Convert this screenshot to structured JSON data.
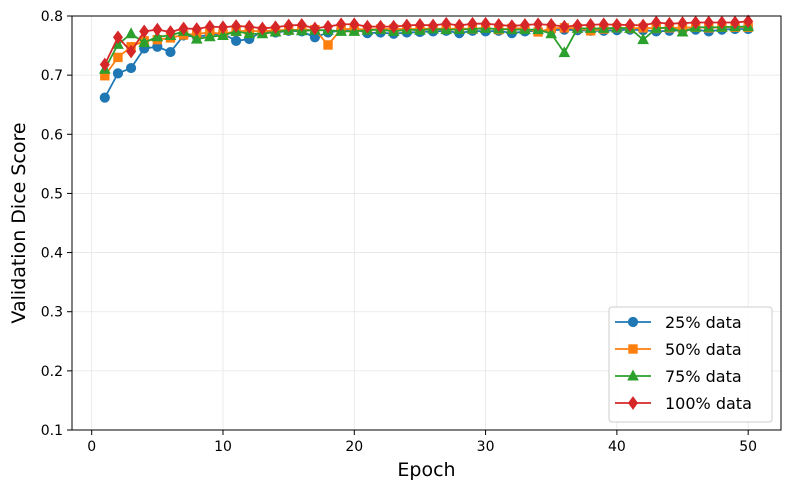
{
  "chart_data": {
    "type": "line",
    "title": "",
    "xlabel": "Epoch",
    "ylabel": "Validation Dice Score",
    "xlim": [
      -1.5,
      52.5
    ],
    "ylim": [
      0.1,
      0.8
    ],
    "xticks": [
      0,
      10,
      20,
      30,
      40,
      50
    ],
    "yticks": [
      0.1,
      0.2,
      0.3,
      0.4,
      0.5,
      0.6,
      0.7,
      0.8
    ],
    "grid": true,
    "legend_position": "lower-right",
    "x": [
      1,
      2,
      3,
      4,
      5,
      6,
      7,
      8,
      9,
      10,
      11,
      12,
      13,
      14,
      15,
      16,
      17,
      18,
      19,
      20,
      21,
      22,
      23,
      24,
      25,
      26,
      27,
      28,
      29,
      30,
      31,
      32,
      33,
      34,
      35,
      36,
      37,
      38,
      39,
      40,
      41,
      42,
      43,
      44,
      45,
      46,
      47,
      48,
      49,
      50
    ],
    "series": [
      {
        "name": "25% data",
        "color": "#1f77b4",
        "marker": "circle",
        "values": [
          0.662,
          0.703,
          0.712,
          0.745,
          0.748,
          0.739,
          0.767,
          0.765,
          0.768,
          0.77,
          0.758,
          0.761,
          0.774,
          0.772,
          0.775,
          0.774,
          0.764,
          0.772,
          0.776,
          0.778,
          0.771,
          0.772,
          0.77,
          0.772,
          0.773,
          0.774,
          0.775,
          0.771,
          0.775,
          0.774,
          0.775,
          0.771,
          0.774,
          0.775,
          0.776,
          0.777,
          0.776,
          0.775,
          0.775,
          0.776,
          0.777,
          0.776,
          0.774,
          0.775,
          0.776,
          0.777,
          0.774,
          0.777,
          0.778,
          0.778
        ]
      },
      {
        "name": "50% data",
        "color": "#ff7f0e",
        "marker": "square",
        "values": [
          0.699,
          0.73,
          0.748,
          0.758,
          0.76,
          0.763,
          0.768,
          0.77,
          0.772,
          0.77,
          0.774,
          0.775,
          0.774,
          0.776,
          0.776,
          0.777,
          0.777,
          0.751,
          0.778,
          0.778,
          0.777,
          0.778,
          0.778,
          0.778,
          0.778,
          0.779,
          0.778,
          0.779,
          0.778,
          0.78,
          0.777,
          0.779,
          0.779,
          0.773,
          0.779,
          0.78,
          0.779,
          0.775,
          0.778,
          0.78,
          0.779,
          0.78,
          0.779,
          0.78,
          0.78,
          0.781,
          0.78,
          0.781,
          0.781,
          0.781
        ]
      },
      {
        "name": "75% data",
        "color": "#2ca02c",
        "marker": "triangle",
        "values": [
          0.71,
          0.752,
          0.77,
          0.755,
          0.765,
          0.767,
          0.774,
          0.761,
          0.765,
          0.767,
          0.774,
          0.77,
          0.77,
          0.773,
          0.776,
          0.775,
          0.776,
          0.776,
          0.774,
          0.774,
          0.776,
          0.777,
          0.774,
          0.777,
          0.776,
          0.778,
          0.777,
          0.777,
          0.778,
          0.779,
          0.778,
          0.777,
          0.777,
          0.777,
          0.77,
          0.738,
          0.779,
          0.779,
          0.779,
          0.78,
          0.779,
          0.76,
          0.779,
          0.781,
          0.773,
          0.781,
          0.781,
          0.781,
          0.782,
          0.782
        ]
      },
      {
        "name": "100% data",
        "color": "#d62728",
        "marker": "diamond",
        "values": [
          0.718,
          0.764,
          0.74,
          0.774,
          0.777,
          0.773,
          0.779,
          0.778,
          0.782,
          0.781,
          0.783,
          0.782,
          0.779,
          0.781,
          0.784,
          0.785,
          0.779,
          0.782,
          0.786,
          0.786,
          0.782,
          0.782,
          0.782,
          0.784,
          0.785,
          0.784,
          0.787,
          0.784,
          0.787,
          0.787,
          0.785,
          0.783,
          0.785,
          0.786,
          0.785,
          0.782,
          0.784,
          0.785,
          0.786,
          0.785,
          0.785,
          0.784,
          0.789,
          0.787,
          0.788,
          0.789,
          0.789,
          0.789,
          0.789,
          0.791
        ]
      }
    ]
  }
}
